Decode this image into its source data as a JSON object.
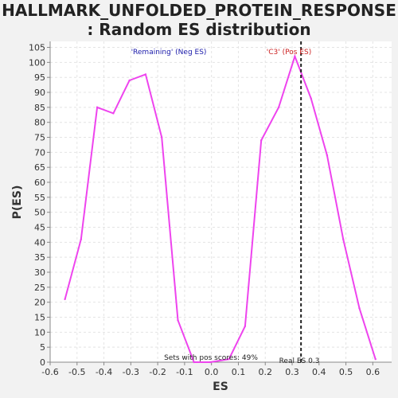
{
  "chart_data": {
    "type": "line",
    "title": [
      "HALLMARK_UNFOLDED_PROTEIN_RESPONSE",
      ": Random ES distribution"
    ],
    "xlabel": "ES",
    "ylabel": "P(ES)",
    "xlim": [
      -0.6,
      0.67
    ],
    "ylim": [
      0,
      107
    ],
    "x_ticks": [
      -0.6,
      -0.5,
      -0.4,
      -0.3,
      -0.2,
      -0.1,
      0.0,
      0.1,
      0.2,
      0.3,
      0.4,
      0.5,
      0.6
    ],
    "x_tick_labels": [
      "-0.6",
      "-0.5",
      "-0.4",
      "-0.3",
      "-0.2",
      "-0.1",
      "0.0",
      "0.1",
      "0.2",
      "0.3",
      "0.4",
      "0.5",
      "0.6"
    ],
    "y_ticks": [
      0,
      5,
      10,
      15,
      20,
      25,
      30,
      35,
      40,
      45,
      50,
      55,
      60,
      65,
      70,
      75,
      80,
      85,
      90,
      95,
      100,
      105
    ],
    "grid": true,
    "series": [
      {
        "color": "#ee44ee",
        "x": [
          -0.545,
          -0.485,
          -0.425,
          -0.365,
          -0.305,
          -0.245,
          -0.185,
          -0.125,
          -0.065,
          -0.005,
          0.065,
          0.125,
          0.185,
          0.25,
          0.31,
          0.37,
          0.43,
          0.49,
          0.55,
          0.61
        ],
        "y": [
          21,
          41,
          85,
          83,
          94,
          96,
          75,
          14,
          0,
          0,
          1,
          12,
          74,
          85,
          102,
          88,
          69,
          41,
          18,
          1
        ]
      }
    ],
    "real_es": {
      "x": 0.333,
      "label": "Real ES 0.3",
      "color": "#222222"
    },
    "annotations": {
      "neg_label": "'Remaining' (Neg ES)",
      "neg_color": "#1a1aaa",
      "pos_label": "'C3' (Pos ES)",
      "pos_color": "#cc2222",
      "pos_scores": "Sets with pos scores: 49%"
    }
  }
}
